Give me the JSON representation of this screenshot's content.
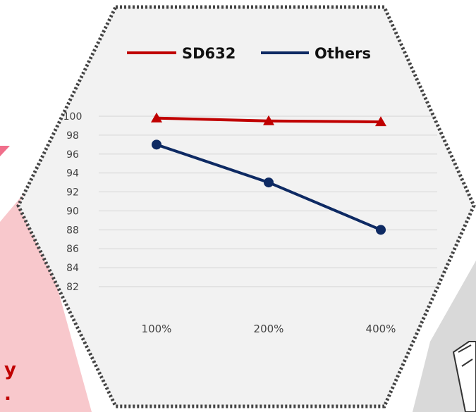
{
  "partial_text": [
    "y",
    "."
  ],
  "colors": {
    "background": "#f2f2f2",
    "border": "#444444",
    "pink": "#f8c8cc",
    "dark_red": "#c00000",
    "navy": "#0e2a63"
  },
  "chart_data": {
    "type": "line",
    "categories": [
      "100%",
      "200%",
      "400%"
    ],
    "series": [
      {
        "name": "SD632",
        "values": [
          99.8,
          99.5,
          99.4
        ],
        "color": "#c00000",
        "marker": "triangle"
      },
      {
        "name": "Others",
        "values": [
          97,
          93,
          88
        ],
        "color": "#0e2a63",
        "marker": "circle"
      }
    ],
    "ylim": [
      82,
      100
    ],
    "yticks": [
      82,
      84,
      86,
      88,
      90,
      92,
      94,
      96,
      98,
      100
    ],
    "legend": "top",
    "grid": true
  }
}
